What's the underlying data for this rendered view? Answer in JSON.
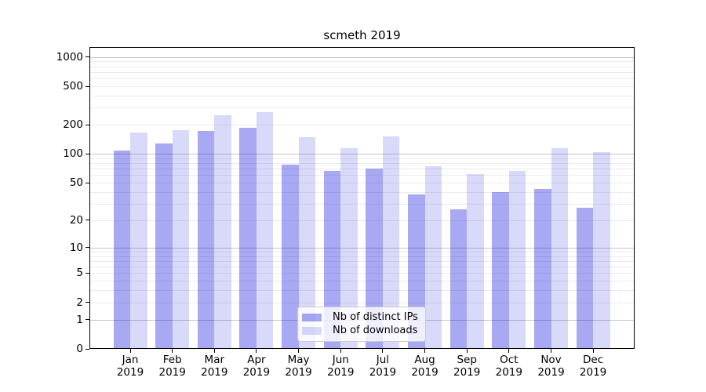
{
  "chart_data": {
    "type": "bar",
    "title": "scmeth 2019",
    "categories": [
      "Jan",
      "Feb",
      "Mar",
      "Apr",
      "May",
      "Jun",
      "Jul",
      "Aug",
      "Sep",
      "Oct",
      "Nov",
      "Dec"
    ],
    "x_year_line": "2019",
    "series": [
      {
        "name": "Nb of distinct IPs",
        "color": "rgba(0,0,220,0.34)",
        "values": [
          108,
          129,
          172,
          187,
          77,
          67,
          71,
          38,
          26,
          40,
          43,
          27
        ]
      },
      {
        "name": "Nb of downloads",
        "color": "rgba(0,0,220,0.15)",
        "values": [
          167,
          177,
          250,
          269,
          149,
          115,
          153,
          75,
          62,
          67,
          115,
          104
        ]
      }
    ],
    "yscale": "log10(1+y)",
    "ylim": [
      0,
      1265
    ],
    "y_ticks": [
      0,
      1,
      2,
      5,
      10,
      20,
      50,
      100,
      200,
      500,
      1000
    ],
    "grid": {
      "major_ticks": [
        1,
        10,
        100,
        1000
      ],
      "minor_ticks_rule": "2-9 per decade",
      "major_color": "#c6c6c6",
      "minor_color": "#ececec"
    },
    "legend_position": "lower center",
    "axis_color": "#000000",
    "background_color": "#ffffff"
  }
}
